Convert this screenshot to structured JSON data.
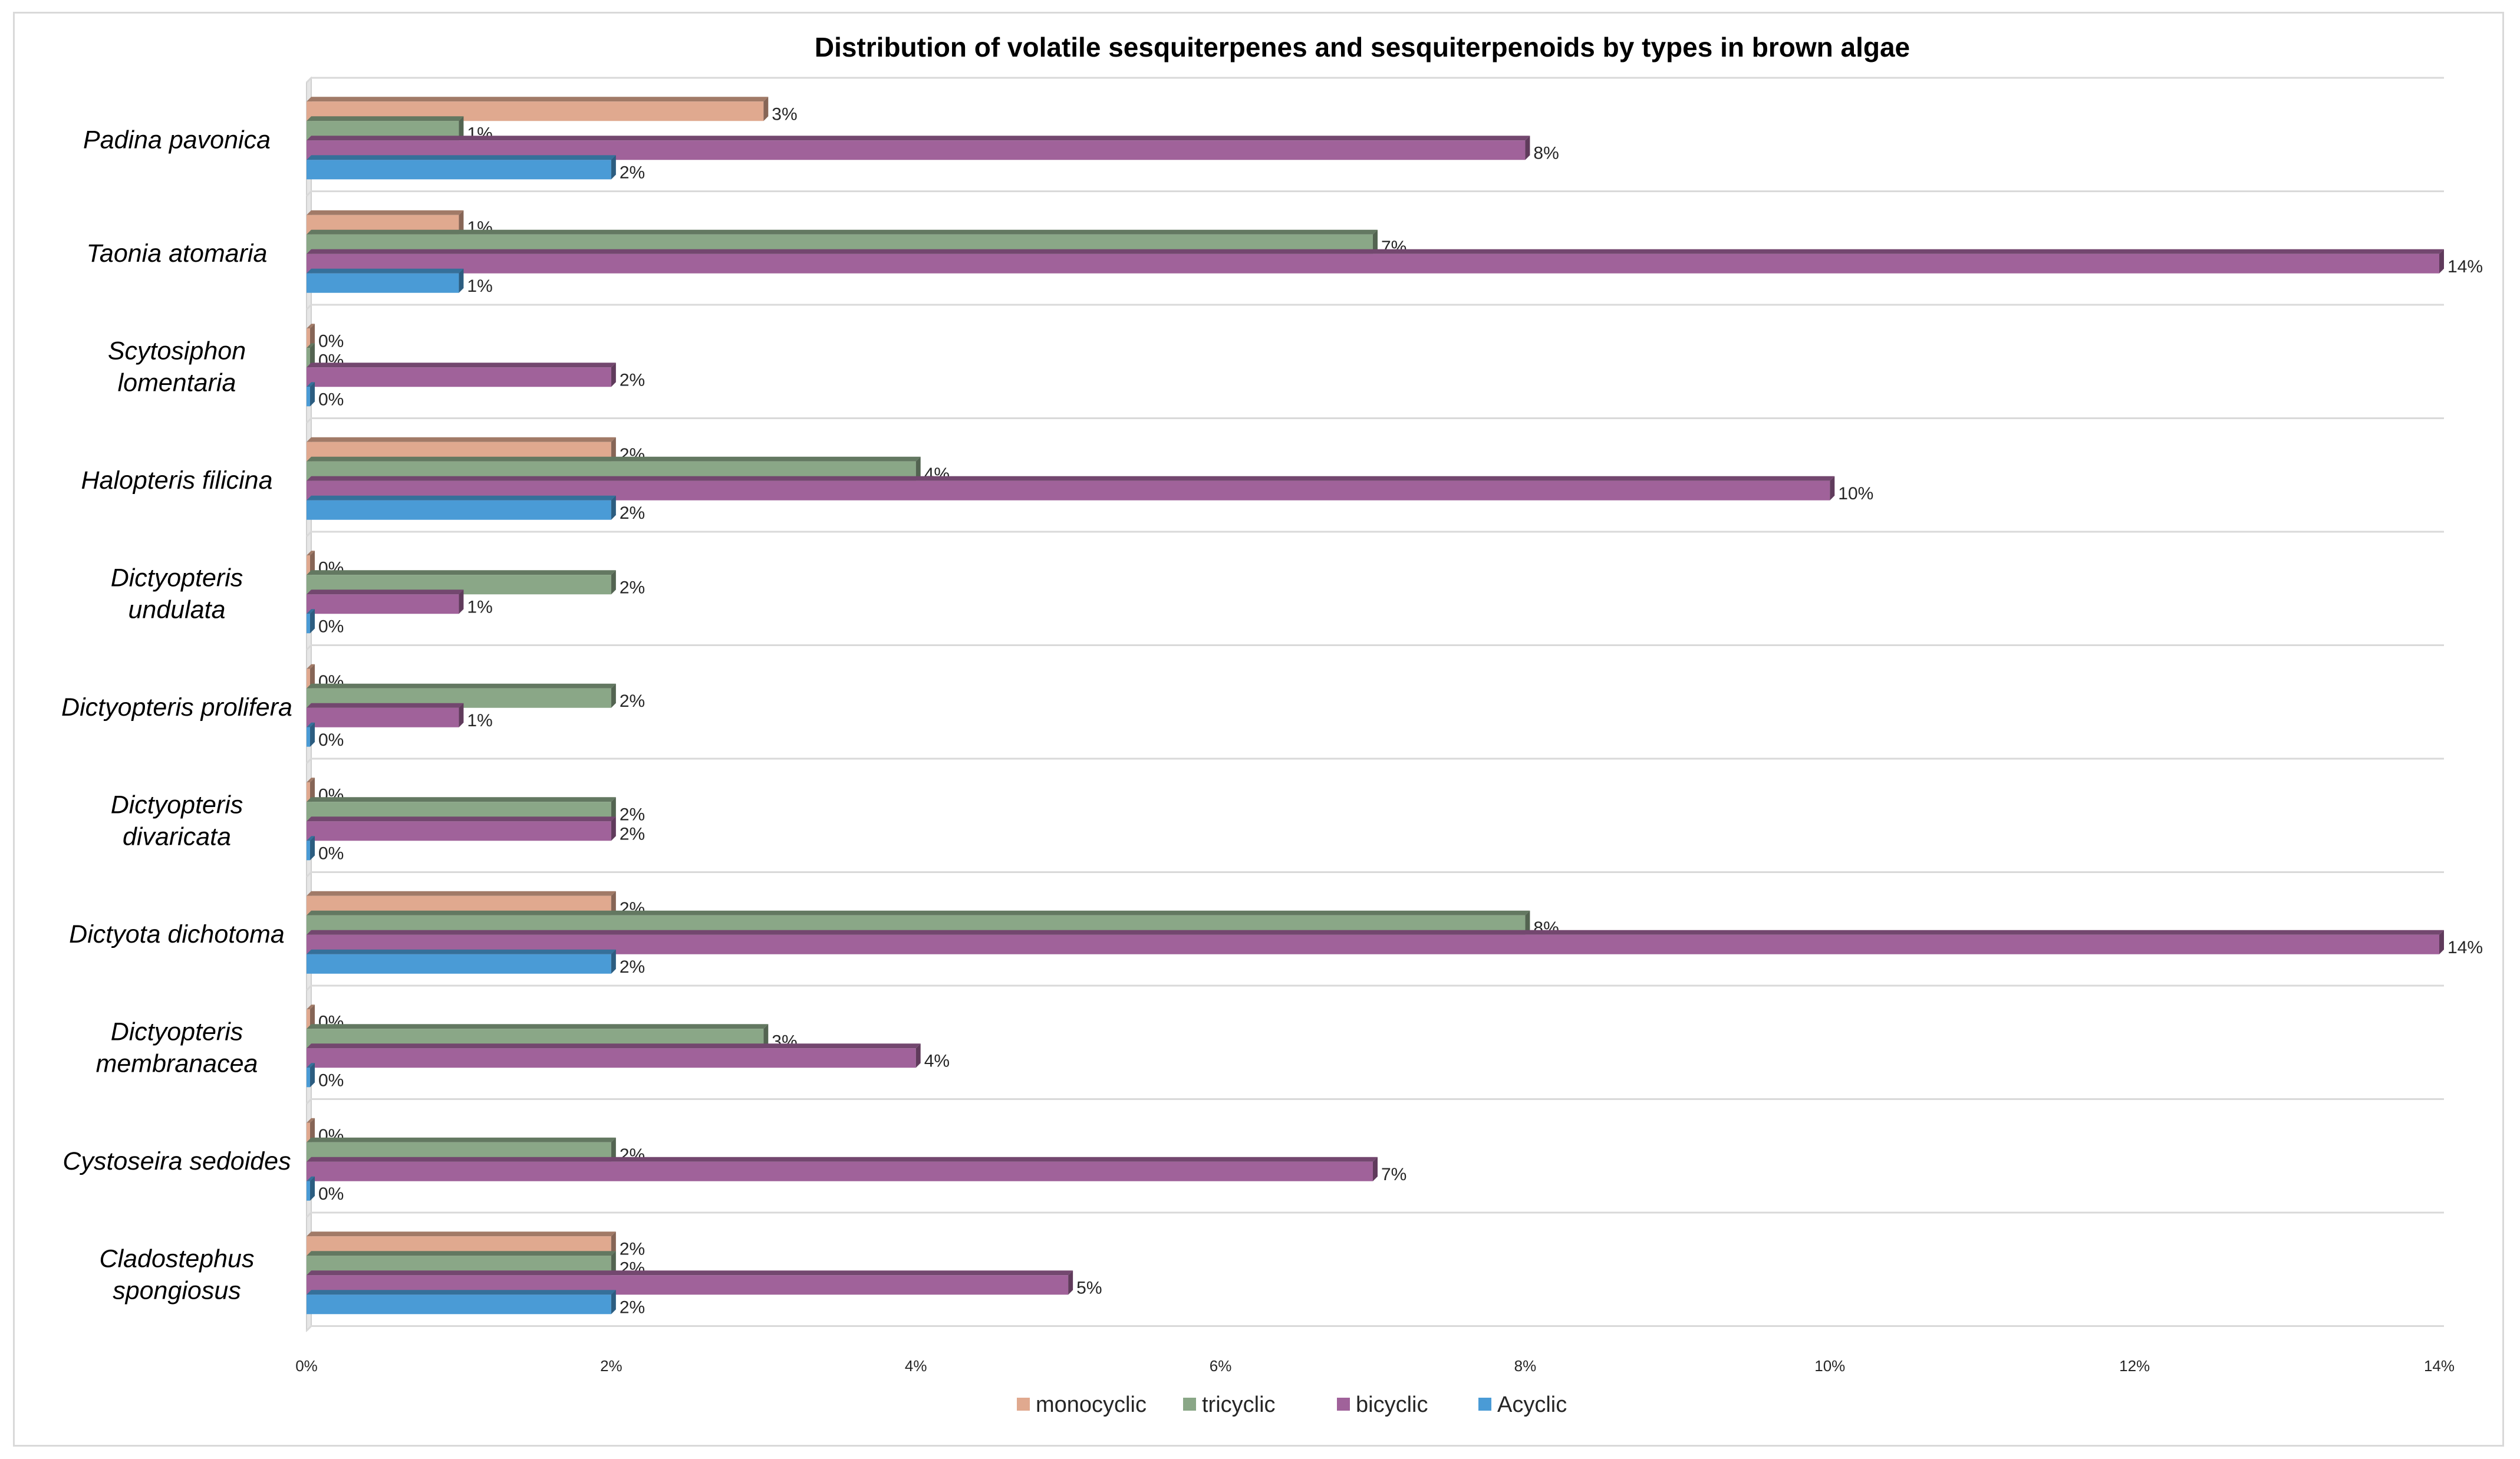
{
  "chart_data": {
    "type": "bar",
    "orientation": "horizontal",
    "title": "Distribution of volatile sesquiterpenes and sesquiterpenoids by types in brown algae",
    "xlabel": "",
    "ylabel": "",
    "xlim": [
      0,
      14
    ],
    "x_ticks": [
      "0%",
      "2%",
      "4%",
      "6%",
      "8%",
      "10%",
      "12%",
      "14%"
    ],
    "grid": "horizontal category separators",
    "legend_position": "bottom",
    "categories": [
      [
        "Padina pavonica"
      ],
      [
        "Taonia atomaria"
      ],
      [
        "Scytosiphon",
        "lomentaria"
      ],
      [
        "Halopteris filicina"
      ],
      [
        "Dictyopteris",
        "undulata"
      ],
      [
        "Dictyopteris prolifera"
      ],
      [
        "Dictyopteris",
        "divaricata"
      ],
      [
        "Dictyota dichotoma"
      ],
      [
        "Dictyopteris",
        "membranacea"
      ],
      [
        "Cystoseira sedoides"
      ],
      [
        "Cladostephus",
        "spongiosus"
      ]
    ],
    "series": [
      {
        "name": "monocyclic",
        "color": "#e0a98f",
        "values": [
          3,
          1,
          0,
          2,
          0,
          0,
          0,
          2,
          0,
          0,
          2
        ]
      },
      {
        "name": "tricyclic",
        "color": "#8aa787",
        "values": [
          1,
          7,
          0,
          4,
          2,
          2,
          2,
          8,
          3,
          2,
          2
        ]
      },
      {
        "name": "bicyclic",
        "color": "#a0629a",
        "values": [
          8,
          14,
          2,
          10,
          1,
          1,
          2,
          14,
          4,
          7,
          5
        ]
      },
      {
        "name": "Acyclic",
        "color": "#4a9bd6",
        "values": [
          2,
          1,
          0,
          2,
          0,
          0,
          0,
          2,
          0,
          0,
          2
        ]
      }
    ],
    "value_suffix": "%"
  }
}
